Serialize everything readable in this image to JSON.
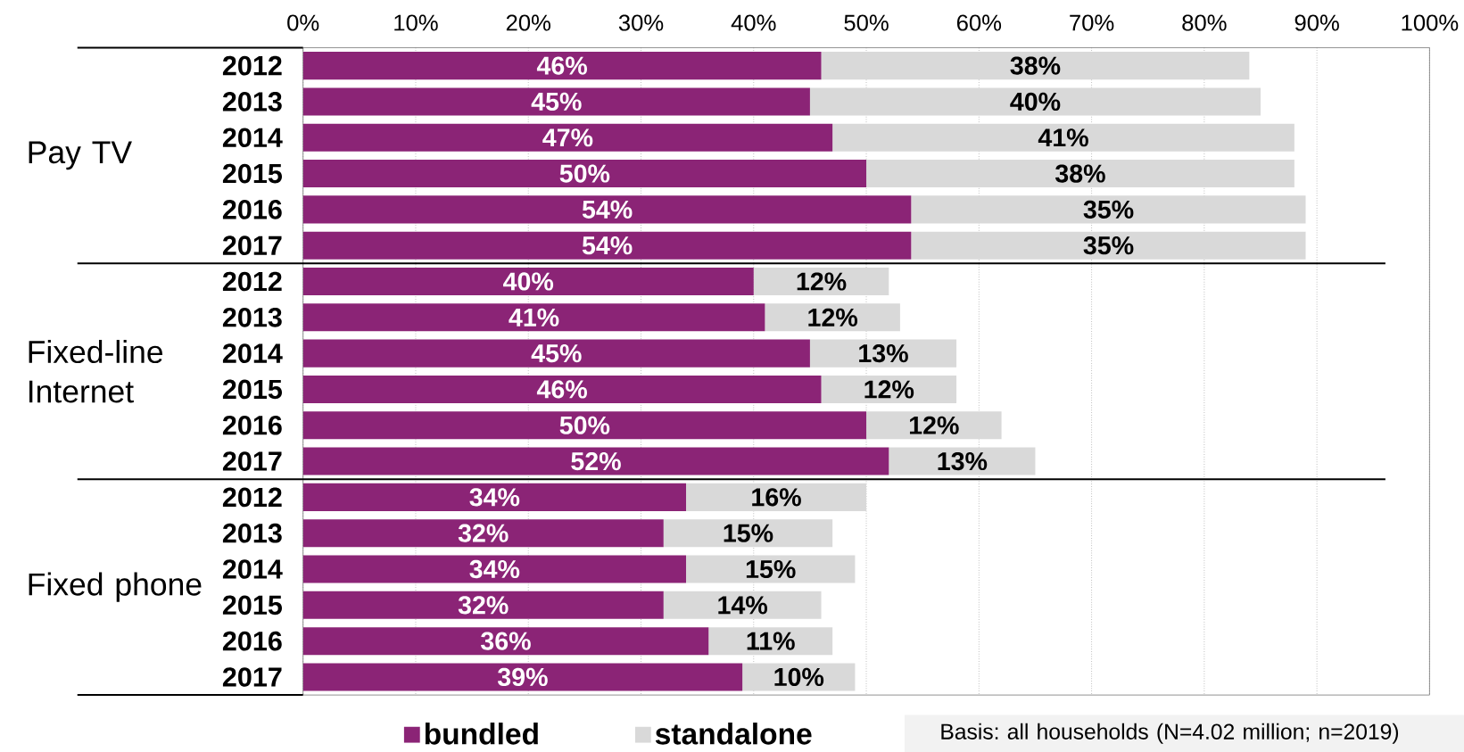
{
  "chart_data": {
    "type": "bar",
    "orientation": "horizontal",
    "stacked": true,
    "categories": [
      "2012",
      "2013",
      "2014",
      "2015",
      "2016",
      "2017",
      "2012",
      "2013",
      "2014",
      "2015",
      "2016",
      "2017",
      "2012",
      "2013",
      "2014",
      "2015",
      "2016",
      "2017"
    ],
    "series": [
      {
        "name": "bundled",
        "color": "#8b2476",
        "values": [
          46,
          45,
          47,
          50,
          54,
          54,
          40,
          41,
          45,
          46,
          50,
          52,
          34,
          32,
          34,
          32,
          36,
          39
        ],
        "value_labels": [
          "46%",
          "45%",
          "47%",
          "50%",
          "54%",
          "54%",
          "40%",
          "41%",
          "45%",
          "46%",
          "50%",
          "52%",
          "34%",
          "32%",
          "34%",
          "32%",
          "36%",
          "39%"
        ]
      },
      {
        "name": "standalone",
        "color": "#d9d9d9",
        "values": [
          38,
          40,
          41,
          38,
          35,
          35,
          12,
          12,
          13,
          12,
          12,
          13,
          16,
          15,
          15,
          14,
          11,
          10
        ],
        "value_labels": [
          "38%",
          "40%",
          "41%",
          "38%",
          "35%",
          "35%",
          "12%",
          "12%",
          "13%",
          "12%",
          "12%",
          "13%",
          "16%",
          "15%",
          "15%",
          "14%",
          "11%",
          "10%"
        ]
      }
    ],
    "xlim": [
      0,
      100
    ],
    "xticks": [
      {
        "value": 0,
        "label": "0%"
      },
      {
        "value": 10,
        "label": "10%"
      },
      {
        "value": 20,
        "label": "20%"
      },
      {
        "value": 30,
        "label": "30%"
      },
      {
        "value": 40,
        "label": "40%"
      },
      {
        "value": 50,
        "label": "50%"
      },
      {
        "value": 60,
        "label": "60%"
      },
      {
        "value": 70,
        "label": "70%"
      },
      {
        "value": 80,
        "label": "80%"
      },
      {
        "value": 90,
        "label": "90%"
      },
      {
        "value": 100,
        "label": "100%"
      }
    ],
    "grid": "x",
    "legend": "bottom",
    "annotations": [
      "Pay TV",
      "Fixed-line Internet",
      "Fixed phone",
      "Basis: all households (N=4.02 million; n=2019)"
    ]
  }
}
